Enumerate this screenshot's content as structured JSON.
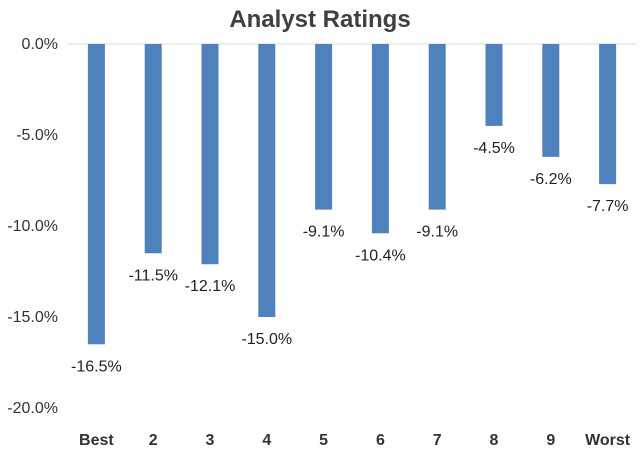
{
  "chart_data": {
    "type": "bar",
    "title": "Analyst Ratings",
    "categories": [
      "Best",
      "2",
      "3",
      "4",
      "5",
      "6",
      "7",
      "8",
      "9",
      "Worst"
    ],
    "values": [
      -16.5,
      -11.5,
      -12.1,
      -15.0,
      -9.1,
      -10.4,
      -9.1,
      -4.5,
      -6.2,
      -7.7
    ],
    "data_labels": [
      "-16.5%",
      "-11.5%",
      "-12.1%",
      "-15.0%",
      "-9.1%",
      "-10.4%",
      "-9.1%",
      "-4.5%",
      "-6.2%",
      "-7.7%"
    ],
    "y_ticks": [
      0,
      -5,
      -10,
      -15,
      -20
    ],
    "y_tick_labels": [
      "0.0%",
      "-5.0%",
      "-10.0%",
      "-15.0%",
      "-20.0%"
    ],
    "ylim": [
      -20,
      0
    ],
    "xlabel": "",
    "ylabel": "",
    "grid": false,
    "legend": "none",
    "bar_color": "#4f81bd",
    "zero_line_color": "#d9d9d9"
  }
}
